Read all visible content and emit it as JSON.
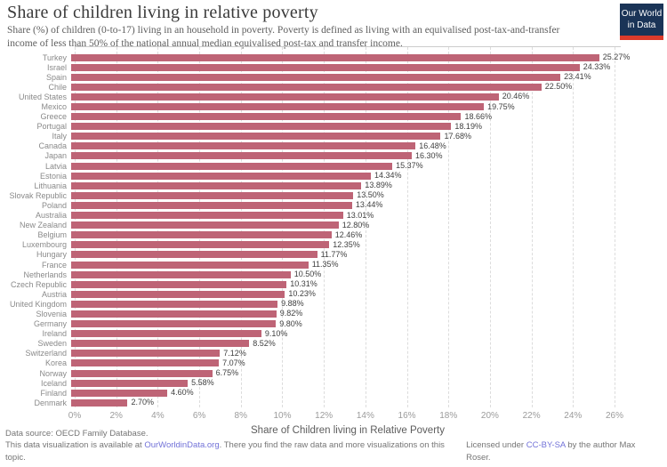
{
  "header": {
    "title": "Share of children living in relative poverty",
    "subtitle": "Share (%) of children (0-to-17) living in an household in poverty. Poverty is defined as living with an equivalised post-tax-and-transfer income of less than 50% of the national annual median equivalised post-tax and transfer income.",
    "logo_line1": "Our World",
    "logo_line2": "in Data"
  },
  "colors": {
    "bar": "#be6476",
    "gridline": "#dcdcdc",
    "link": "#7272d8",
    "logo_bg": "#1a3457",
    "logo_accent": "#dc3b2b"
  },
  "chart_data": {
    "type": "bar",
    "orientation": "horizontal",
    "title": "Share of children living in relative poverty",
    "xlabel": "Share of Children living in Relative Poverty",
    "xlim": [
      0,
      26.3
    ],
    "grid": "vertical-dashed",
    "value_suffix": "%",
    "categories": [
      "Turkey",
      "Israel",
      "Spain",
      "Chile",
      "United States",
      "Mexico",
      "Greece",
      "Portugal",
      "Italy",
      "Canada",
      "Japan",
      "Latvia",
      "Estonia",
      "Lithuania",
      "Slovak Republic",
      "Poland",
      "Australia",
      "New Zealand",
      "Belgium",
      "Luxembourg",
      "Hungary",
      "France",
      "Netherlands",
      "Czech Republic",
      "Austria",
      "United Kingdom",
      "Slovenia",
      "Germany",
      "Ireland",
      "Sweden",
      "Switzerland",
      "Korea",
      "Norway",
      "Iceland",
      "Finland",
      "Denmark"
    ],
    "values": [
      25.27,
      24.33,
      23.41,
      22.5,
      20.46,
      19.75,
      18.66,
      18.19,
      17.68,
      16.48,
      16.3,
      15.37,
      14.34,
      13.89,
      13.5,
      13.44,
      13.01,
      12.8,
      12.46,
      12.35,
      11.77,
      11.35,
      10.5,
      10.31,
      10.23,
      9.88,
      9.82,
      9.8,
      9.1,
      8.52,
      7.12,
      7.07,
      6.75,
      5.58,
      4.6,
      2.7
    ],
    "x_ticks": [
      "0%",
      "2%",
      "4%",
      "6%",
      "8%",
      "10%",
      "12%",
      "14%",
      "16%",
      "18%",
      "20%",
      "22%",
      "24%",
      "26%"
    ],
    "x_tick_values": [
      0,
      2,
      4,
      6,
      8,
      10,
      12,
      14,
      16,
      18,
      20,
      22,
      24,
      26
    ]
  },
  "footer": {
    "source_line": "Data source: OECD Family Database.",
    "availability_pre": "This data visualization is available at ",
    "availability_link": "OurWorldinData.org",
    "availability_post": ". There you find the raw data and more visualizations on this topic.",
    "license_pre": "Licensed under ",
    "license_link": "CC-BY-SA",
    "license_post": " by the author Max Roser."
  }
}
